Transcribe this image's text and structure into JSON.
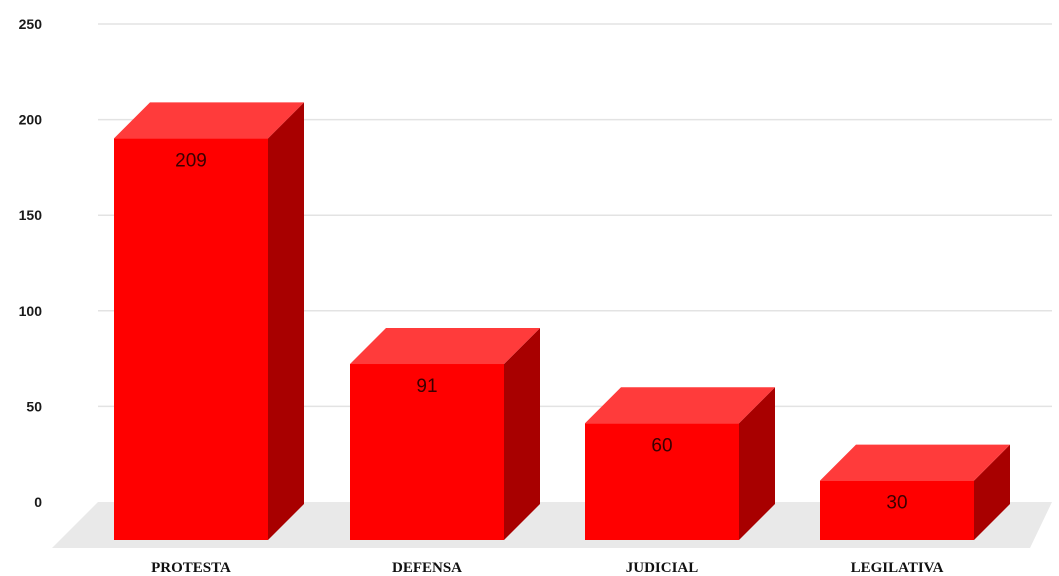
{
  "chart_data": {
    "type": "bar",
    "categories": [
      "PROTESTA",
      "DEFENSA",
      "JUDICIAL",
      "LEGILATIVA"
    ],
    "values": [
      209,
      91,
      60,
      30
    ],
    "data_labels": [
      "209",
      "91",
      "60",
      "30"
    ],
    "title": "",
    "xlabel": "",
    "ylabel": "",
    "ylim": [
      0,
      250
    ],
    "yticks": [
      "0",
      "50",
      "100",
      "150",
      "200",
      "250"
    ],
    "grid": true,
    "style": "3d",
    "colors": {
      "bar_front": "#ff0000",
      "bar_top": "#ff3b3b",
      "bar_side": "#a80000",
      "grid": "#e3e3e3",
      "floor": "#e9e9e9"
    }
  }
}
